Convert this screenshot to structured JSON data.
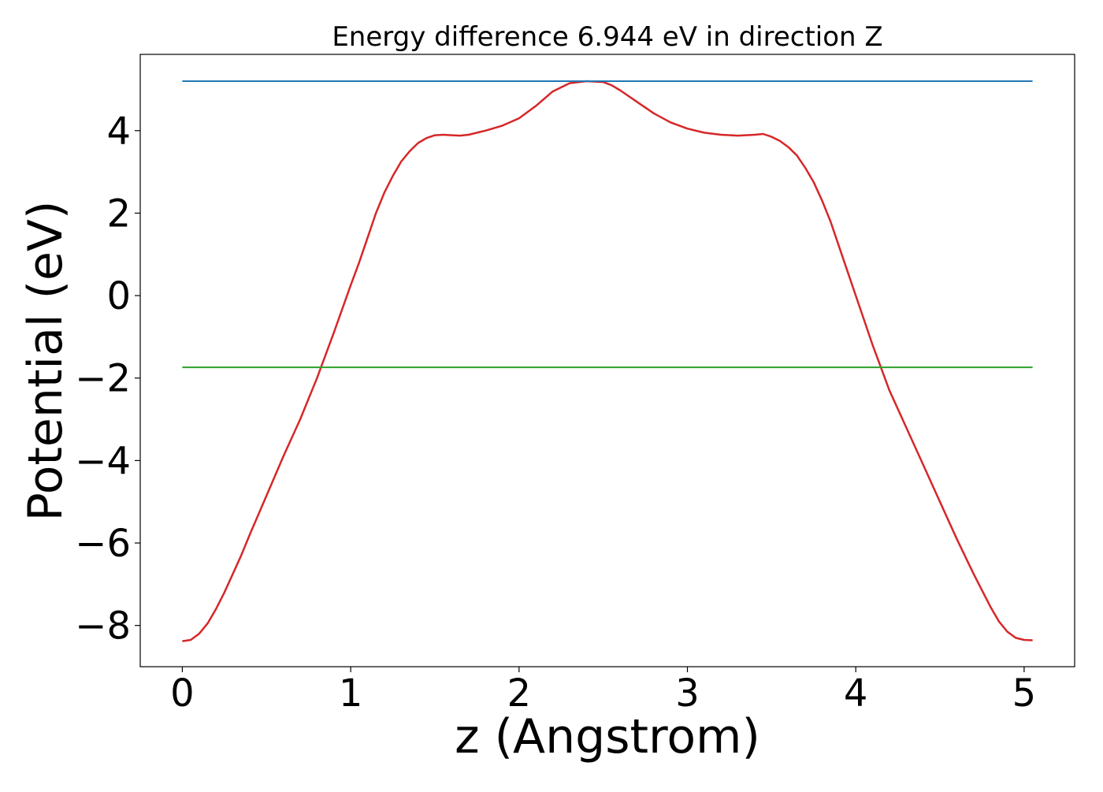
{
  "chart_data": {
    "type": "line",
    "title": "Energy difference 6.944 eV in direction Z",
    "xlabel": "z (Angstrom)",
    "ylabel": "Potential (eV)",
    "xlim": [
      -0.25,
      5.3
    ],
    "ylim": [
      -9.0,
      5.85
    ],
    "xticks": [
      0,
      1,
      2,
      3,
      4,
      5
    ],
    "xtick_labels": [
      "0",
      "1",
      "2",
      "3",
      "4",
      "5"
    ],
    "yticks": [
      -8,
      -6,
      -4,
      -2,
      0,
      2,
      4
    ],
    "ytick_labels": [
      "−8",
      "−6",
      "−4",
      "−2",
      "0",
      "2",
      "4"
    ],
    "grid": false,
    "series": [
      {
        "color": "#d62728",
        "x": [
          0.0,
          0.05,
          0.1,
          0.15,
          0.2,
          0.25,
          0.3,
          0.35,
          0.4,
          0.5,
          0.6,
          0.7,
          0.8,
          0.9,
          1.0,
          1.05,
          1.1,
          1.15,
          1.2,
          1.25,
          1.3,
          1.35,
          1.4,
          1.45,
          1.5,
          1.55,
          1.6,
          1.65,
          1.7,
          1.75,
          1.8,
          1.85,
          1.9,
          2.0,
          2.1,
          2.2,
          2.3,
          2.4,
          2.5,
          2.55,
          2.6,
          2.7,
          2.8,
          2.9,
          3.0,
          3.1,
          3.2,
          3.3,
          3.4,
          3.45,
          3.5,
          3.55,
          3.6,
          3.65,
          3.7,
          3.75,
          3.8,
          3.85,
          3.9,
          3.95,
          4.0,
          4.05,
          4.1,
          4.15,
          4.2,
          4.3,
          4.4,
          4.5,
          4.6,
          4.7,
          4.75,
          4.8,
          4.85,
          4.9,
          4.95,
          5.0,
          5.05
        ],
        "y": [
          -8.38,
          -8.35,
          -8.2,
          -7.95,
          -7.6,
          -7.2,
          -6.75,
          -6.3,
          -5.8,
          -4.85,
          -3.9,
          -3.0,
          -2.0,
          -0.9,
          0.25,
          0.8,
          1.4,
          2.0,
          2.5,
          2.9,
          3.25,
          3.5,
          3.7,
          3.82,
          3.89,
          3.9,
          3.89,
          3.88,
          3.9,
          3.95,
          4.0,
          4.06,
          4.12,
          4.3,
          4.6,
          4.95,
          5.15,
          5.2,
          5.18,
          5.1,
          4.98,
          4.7,
          4.42,
          4.2,
          4.05,
          3.95,
          3.9,
          3.88,
          3.9,
          3.92,
          3.85,
          3.75,
          3.6,
          3.4,
          3.1,
          2.75,
          2.3,
          1.8,
          1.2,
          0.6,
          0.0,
          -0.6,
          -1.2,
          -1.75,
          -2.3,
          -3.2,
          -4.1,
          -5.0,
          -5.9,
          -6.75,
          -7.15,
          -7.55,
          -7.9,
          -8.15,
          -8.3,
          -8.35,
          -8.36
        ]
      },
      {
        "color": "#1f77b4",
        "x": [
          0.0,
          5.05
        ],
        "y": [
          5.2,
          5.2
        ]
      },
      {
        "color": "#2ca02c",
        "x": [
          0.0,
          5.05
        ],
        "y": [
          -1.74,
          -1.74
        ]
      }
    ]
  }
}
